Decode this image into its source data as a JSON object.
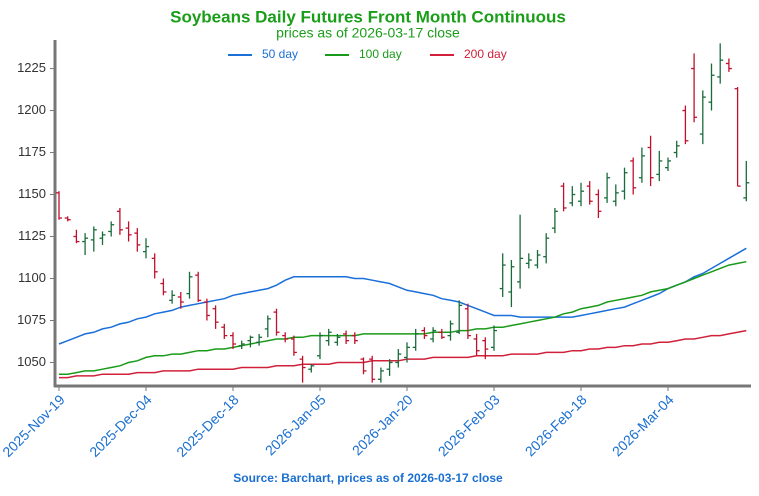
{
  "chart_data": {
    "type": "ohlc",
    "title": "Soybeans Daily Futures Front Month Continuous",
    "subtitle": "prices as of 2026-03-17 close",
    "source": "Source: Barchart, prices as of 2026-03-17 close",
    "categories": [
      "2025-Nov-19",
      null,
      null,
      null,
      null,
      null,
      null,
      null,
      null,
      null,
      "2025-Dec-04",
      null,
      null,
      null,
      null,
      null,
      null,
      null,
      null,
      null,
      "2025-Dec-18",
      null,
      null,
      null,
      null,
      null,
      null,
      null,
      null,
      null,
      "2026-Jan-05",
      null,
      null,
      null,
      null,
      null,
      null,
      null,
      null,
      null,
      "2026-Jan-20",
      null,
      null,
      null,
      null,
      null,
      null,
      null,
      null,
      null,
      "2026-Feb-03",
      null,
      null,
      null,
      null,
      null,
      null,
      null,
      null,
      null,
      "2026-Feb-18",
      null,
      null,
      null,
      null,
      null,
      null,
      null,
      null,
      null,
      "2026-Mar-04",
      null,
      null,
      null,
      null,
      null,
      null,
      null,
      null,
      null
    ],
    "open": [
      1151,
      1136,
      1125,
      1122,
      1123,
      1124,
      1128,
      1140,
      1130,
      1127,
      1116,
      1112,
      1097,
      1087,
      1089,
      1091,
      1102,
      1086,
      1082,
      1071,
      1066,
      1060,
      1063,
      1062,
      1070,
      1080,
      1066,
      1064,
      1052,
      1046,
      1054,
      1063,
      1062,
      1067,
      1066,
      1052,
      1052,
      1040,
      1046,
      1050,
      1053,
      1059,
      1069,
      1064,
      1068,
      1066,
      1068,
      1082,
      1064,
      1063,
      1059,
      1094,
      1092,
      1098,
      1109,
      1108,
      1113,
      1130,
      1155,
      1145,
      1146,
      1155,
      1150,
      1148,
      1146,
      1152,
      1170,
      1160,
      1178,
      1162,
      1166,
      1175,
      1200,
      1225,
      1186,
      1205,
      1220,
      1228,
      1213,
      1148
    ],
    "high": [
      1152,
      1137,
      1129,
      1127,
      1131,
      1128,
      1134,
      1142,
      1134,
      1130,
      1124,
      1115,
      1100,
      1093,
      1092,
      1104,
      1104,
      1088,
      1084,
      1073,
      1068,
      1063,
      1066,
      1067,
      1078,
      1082,
      1068,
      1066,
      1054,
      1049,
      1068,
      1070,
      1067,
      1069,
      1068,
      1053,
      1054,
      1047,
      1052,
      1058,
      1062,
      1070,
      1071,
      1071,
      1070,
      1075,
      1087,
      1085,
      1067,
      1065,
      1072,
      1115,
      1111,
      1138,
      1115,
      1117,
      1127,
      1142,
      1157,
      1155,
      1157,
      1158,
      1153,
      1163,
      1156,
      1166,
      1172,
      1178,
      1185,
      1176,
      1172,
      1182,
      1203,
      1234,
      1212,
      1228,
      1240,
      1231,
      1214,
      1170
    ],
    "low": [
      1135,
      1134,
      1121,
      1114,
      1116,
      1120,
      1125,
      1126,
      1122,
      1116,
      1112,
      1100,
      1090,
      1085,
      1082,
      1088,
      1086,
      1075,
      1070,
      1064,
      1058,
      1058,
      1059,
      1060,
      1065,
      1066,
      1062,
      1054,
      1038,
      1044,
      1052,
      1060,
      1060,
      1061,
      1061,
      1043,
      1038,
      1038,
      1042,
      1047,
      1050,
      1057,
      1064,
      1062,
      1064,
      1063,
      1067,
      1064,
      1054,
      1052,
      1057,
      1089,
      1083,
      1094,
      1106,
      1106,
      1109,
      1127,
      1140,
      1143,
      1143,
      1144,
      1136,
      1145,
      1143,
      1147,
      1150,
      1157,
      1155,
      1158,
      1164,
      1172,
      1180,
      1193,
      1180,
      1200,
      1216,
      1223,
      1155,
      1146
    ],
    "close": [
      1136,
      1135,
      1122,
      1124,
      1129,
      1126,
      1132,
      1129,
      1126,
      1120,
      1119,
      1104,
      1092,
      1090,
      1086,
      1101,
      1087,
      1078,
      1074,
      1066,
      1061,
      1061,
      1065,
      1065,
      1076,
      1068,
      1064,
      1056,
      1047,
      1048,
      1066,
      1068,
      1065,
      1063,
      1063,
      1045,
      1040,
      1045,
      1050,
      1055,
      1059,
      1067,
      1066,
      1069,
      1065,
      1073,
      1084,
      1066,
      1057,
      1058,
      1069,
      1108,
      1107,
      1112,
      1111,
      1114,
      1124,
      1140,
      1142,
      1150,
      1152,
      1146,
      1140,
      1160,
      1151,
      1163,
      1154,
      1173,
      1160,
      1170,
      1170,
      1179,
      1182,
      1196,
      1208,
      1221,
      1230,
      1225,
      1155,
      1157
    ],
    "up_color": "#1a6b3a",
    "down_color": "#c0102c",
    "series": [
      {
        "name": "50 day",
        "color": "#1a6fd9",
        "values": [
          1061,
          1063,
          1065,
          1067,
          1068,
          1070,
          1071,
          1073,
          1074,
          1076,
          1077,
          1079,
          1080,
          1081,
          1083,
          1084,
          1085,
          1086,
          1087,
          1088,
          1090,
          1091,
          1092,
          1093,
          1094,
          1096,
          1099,
          1101,
          1101,
          1101,
          1101,
          1101,
          1101,
          1101,
          1100,
          1100,
          1099,
          1098,
          1097,
          1095,
          1093,
          1092,
          1091,
          1090,
          1088,
          1087,
          1086,
          1084,
          1082,
          1080,
          1078,
          1078,
          1078,
          1077,
          1077,
          1077,
          1077,
          1077,
          1077,
          1077,
          1078,
          1079,
          1080,
          1081,
          1082,
          1083,
          1085,
          1087,
          1089,
          1091,
          1094,
          1096,
          1098,
          1101,
          1103,
          1106,
          1109,
          1112,
          1115,
          1118
        ]
      },
      {
        "name": "100 day",
        "color": "#1a9a1a",
        "values": [
          1043,
          1043,
          1044,
          1045,
          1045,
          1046,
          1047,
          1048,
          1050,
          1051,
          1053,
          1054,
          1054,
          1055,
          1055,
          1056,
          1057,
          1057,
          1058,
          1058,
          1059,
          1060,
          1061,
          1062,
          1063,
          1064,
          1064,
          1065,
          1065,
          1066,
          1066,
          1066,
          1066,
          1066,
          1066,
          1067,
          1067,
          1067,
          1067,
          1067,
          1067,
          1067,
          1067,
          1068,
          1068,
          1068,
          1069,
          1069,
          1070,
          1070,
          1071,
          1071,
          1072,
          1073,
          1074,
          1075,
          1076,
          1077,
          1079,
          1080,
          1082,
          1083,
          1084,
          1086,
          1087,
          1088,
          1089,
          1090,
          1092,
          1093,
          1094,
          1096,
          1098,
          1100,
          1102,
          1104,
          1106,
          1108,
          1109,
          1110
        ]
      },
      {
        "name": "200 day",
        "color": "#d0203a",
        "values": [
          1041,
          1041,
          1042,
          1042,
          1042,
          1043,
          1043,
          1043,
          1043,
          1044,
          1044,
          1044,
          1045,
          1045,
          1045,
          1045,
          1046,
          1046,
          1046,
          1046,
          1046,
          1047,
          1047,
          1047,
          1047,
          1048,
          1048,
          1048,
          1049,
          1049,
          1049,
          1049,
          1050,
          1050,
          1050,
          1050,
          1051,
          1051,
          1051,
          1051,
          1052,
          1052,
          1052,
          1053,
          1053,
          1053,
          1053,
          1053,
          1054,
          1054,
          1054,
          1054,
          1055,
          1055,
          1055,
          1055,
          1056,
          1056,
          1056,
          1057,
          1057,
          1058,
          1058,
          1059,
          1059,
          1060,
          1060,
          1061,
          1061,
          1062,
          1062,
          1063,
          1064,
          1064,
          1065,
          1066,
          1066,
          1067,
          1068,
          1069
        ]
      }
    ],
    "ylim": [
      1036,
      1242
    ],
    "yticks": [
      1050,
      1075,
      1100,
      1125,
      1150,
      1175,
      1200,
      1225
    ],
    "legend": "top",
    "grid": false
  }
}
